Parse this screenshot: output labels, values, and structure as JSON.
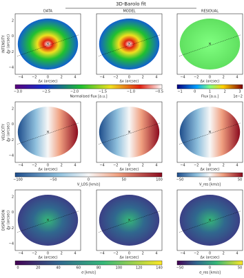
{
  "title": "3D-Barolo fit",
  "columns": [
    "DATA",
    "MODEL",
    "RESIDUAL"
  ],
  "rows": [
    {
      "label": "INTENSITY",
      "ylabel": "Δy (arcsec)"
    },
    {
      "label": "VELOCITY",
      "ylabel": "Δy (arcsec)"
    },
    {
      "label": "DISPERSION",
      "ylabel": "Δy (arcsec)"
    }
  ],
  "panel_xlabel": "Δx (arcsec)",
  "xticks": [
    "−4",
    "−2",
    "0",
    "2",
    "4"
  ],
  "yticks": [
    "2",
    "0",
    "−2",
    "−4"
  ],
  "colorbars": [
    {
      "label": "Normalised flux [a.u.]",
      "ticks": [
        "−3.0",
        "−2.5",
        "−2.0",
        "−1.5",
        "−1.0",
        "−0.5"
      ]
    },
    {
      "label": "Flux [a.u.]",
      "ticks": [
        "−1",
        "0",
        "1",
        "2",
        "3"
      ],
      "exponent": "1e−2"
    },
    {
      "label": "V_LOS [km/s]",
      "ticks": [
        "−100",
        "−50",
        "0",
        "50",
        "100"
      ]
    },
    {
      "label": "V_res [km/s]",
      "ticks": [
        "−50",
        "0",
        "50"
      ]
    },
    {
      "label": "σ [km/s]",
      "ticks": [
        "0",
        "20",
        "40",
        "60",
        "80",
        "100",
        "120",
        "140"
      ]
    },
    {
      "label": "σ_res [km/s]",
      "ticks": [
        "−50",
        "0",
        "50"
      ]
    }
  ]
}
